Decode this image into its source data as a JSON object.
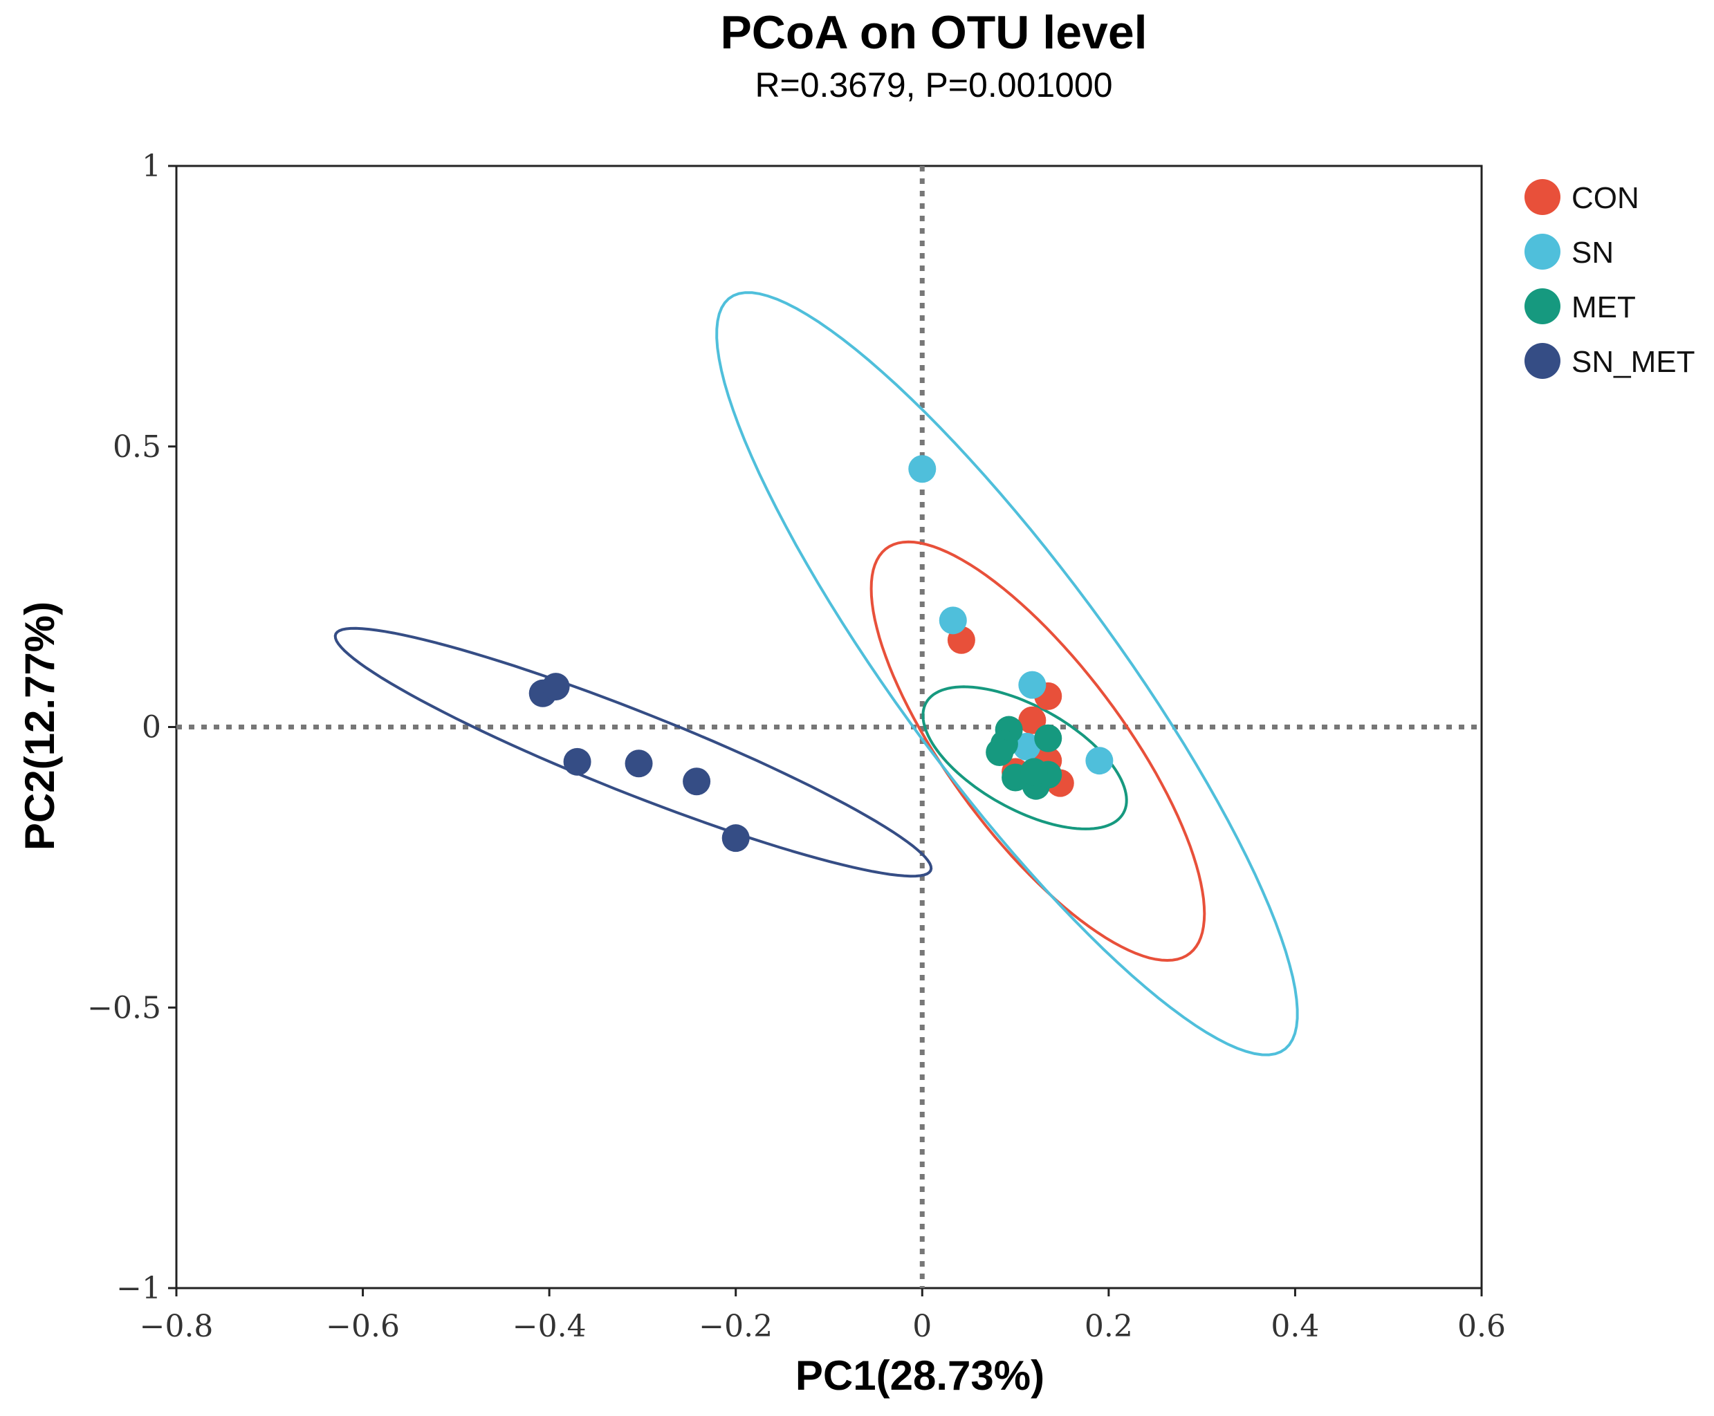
{
  "chart_data": {
    "type": "scatter",
    "title": "PCoA on OTU level",
    "subtitle": "R=0.3679, P=0.001000",
    "xlabel": "PC1(28.73%)",
    "ylabel": "PC2(12.77%)",
    "xlim": [
      -0.8,
      0.6
    ],
    "ylim": [
      -1,
      1
    ],
    "x_ticks": [
      -0.8,
      -0.6,
      -0.4,
      -0.2,
      0,
      0.2,
      0.4,
      0.6
    ],
    "x_tick_labels": [
      "−0.8",
      "−0.6",
      "−0.4",
      "−0.2",
      "0",
      "0.2",
      "0.4",
      "0.6"
    ],
    "y_ticks": [
      1,
      0.5,
      0,
      -0.5,
      -1
    ],
    "y_tick_labels": [
      "1",
      "0.5",
      "0",
      "−0.5",
      "−1"
    ],
    "zero_lines": true,
    "legend_position": "right",
    "series": [
      {
        "name": "CON",
        "color": "#e8503a",
        "points": [
          [
            0.042,
            0.155
          ],
          [
            0.135,
            0.055
          ],
          [
            0.118,
            0.012
          ],
          [
            0.135,
            -0.06
          ],
          [
            0.148,
            -0.1
          ],
          [
            0.1,
            -0.08
          ]
        ],
        "ellipse": {
          "center": [
            0.124,
            -0.043
          ],
          "a": 0.4,
          "b": 0.105,
          "angle_deg": -68
        }
      },
      {
        "name": "SN",
        "color": "#4fbfdb",
        "points": [
          [
            0.0,
            0.46
          ],
          [
            0.033,
            0.19
          ],
          [
            0.118,
            0.075
          ],
          [
            0.19,
            -0.06
          ],
          [
            0.112,
            -0.035
          ]
        ],
        "ellipse": {
          "center": [
            0.091,
            0.095
          ],
          "a": 0.736,
          "b": 0.13,
          "angle_deg": -67
        }
      },
      {
        "name": "MET",
        "color": "#16997f",
        "points": [
          [
            0.093,
            -0.005
          ],
          [
            0.135,
            -0.02
          ],
          [
            0.088,
            -0.03
          ],
          [
            0.083,
            -0.045
          ],
          [
            0.1,
            -0.09
          ],
          [
            0.122,
            -0.105
          ],
          [
            0.135,
            -0.085
          ],
          [
            0.12,
            -0.08
          ]
        ],
        "ellipse": {
          "center": [
            0.11,
            -0.055
          ],
          "a": 0.15,
          "b": 0.074,
          "angle_deg": -52
        }
      },
      {
        "name": "SN_MET",
        "color": "#354d85",
        "points": [
          [
            -0.407,
            0.06
          ],
          [
            -0.393,
            0.072
          ],
          [
            -0.37,
            -0.062
          ],
          [
            -0.304,
            -0.065
          ],
          [
            -0.242,
            -0.097
          ],
          [
            -0.2,
            -0.198
          ]
        ],
        "ellipse": {
          "center": [
            -0.31,
            -0.045
          ],
          "a": 0.383,
          "b": 0.065,
          "angle_deg": -34
        }
      }
    ]
  }
}
